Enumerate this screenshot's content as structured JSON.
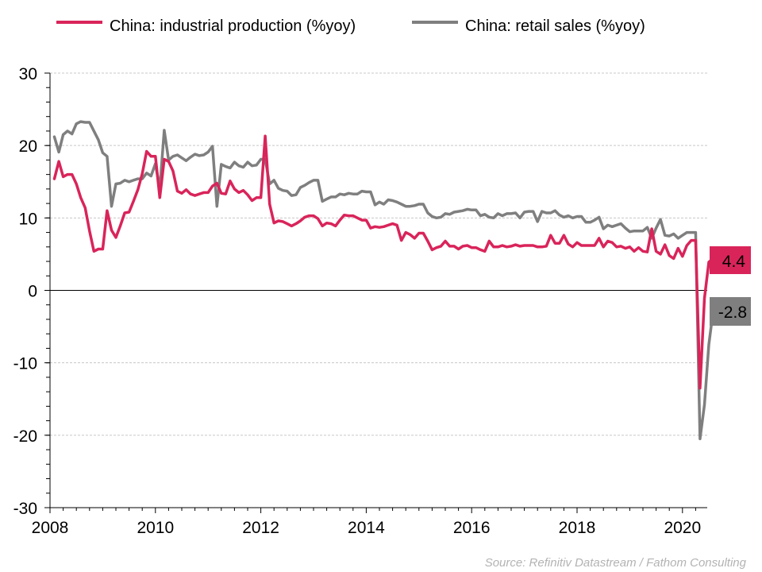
{
  "chart_data": {
    "type": "line",
    "title": "",
    "xlabel": "",
    "ylabel": "",
    "ylim": [
      -30,
      30
    ],
    "xlim": [
      2008.0,
      2020.45
    ],
    "y_ticks": [
      "30",
      "20",
      "10",
      "0",
      "-10",
      "-20",
      "-30"
    ],
    "y_tick_values": [
      30,
      20,
      10,
      0,
      -10,
      -20,
      -30
    ],
    "x_ticks": [
      "2008",
      "2010",
      "2012",
      "2014",
      "2016",
      "2018",
      "2020"
    ],
    "x_tick_values": [
      2008,
      2010,
      2012,
      2014,
      2016,
      2018,
      2020
    ],
    "grid": "horizontal dashed",
    "legend_position": "top",
    "start": "2008-02",
    "frequency": "monthly",
    "series": [
      {
        "name": "China: industrial production (%yoy)",
        "color": "#d9245a",
        "end_label": "4.4",
        "values": [
          15.4,
          17.8,
          15.7,
          16.0,
          16.0,
          14.7,
          12.8,
          11.4,
          8.2,
          5.4,
          5.7,
          5.7,
          11.0,
          8.3,
          7.3,
          8.9,
          10.7,
          10.8,
          12.3,
          13.9,
          16.1,
          19.2,
          18.5,
          18.5,
          12.8,
          18.1,
          17.8,
          16.5,
          13.7,
          13.4,
          13.9,
          13.3,
          13.1,
          13.3,
          13.5,
          13.5,
          14.4,
          14.8,
          13.4,
          13.3,
          15.1,
          14.0,
          13.5,
          13.8,
          13.2,
          12.4,
          12.8,
          12.8,
          21.3,
          11.9,
          9.3,
          9.6,
          9.5,
          9.2,
          8.9,
          9.2,
          9.6,
          10.1,
          10.3,
          10.3,
          9.9,
          8.9,
          9.3,
          9.2,
          8.9,
          9.7,
          10.4,
          10.3,
          10.3,
          10.0,
          9.7,
          9.7,
          8.6,
          8.8,
          8.7,
          8.8,
          9.0,
          9.2,
          9.0,
          6.9,
          8.0,
          7.7,
          7.2,
          7.9,
          7.9,
          6.8,
          5.6,
          5.9,
          6.1,
          6.8,
          6.1,
          6.1,
          5.7,
          6.1,
          6.2,
          5.9,
          5.9,
          5.6,
          5.4,
          6.8,
          6.0,
          6.0,
          6.2,
          6.0,
          6.1,
          6.3,
          6.1,
          6.2,
          6.2,
          6.2,
          6.0,
          6.0,
          6.1,
          7.6,
          6.5,
          6.5,
          7.6,
          6.4,
          6.0,
          6.6,
          6.2,
          6.2,
          6.2,
          6.2,
          7.2,
          6.0,
          6.8,
          6.6,
          6.0,
          6.1,
          5.8,
          6.0,
          5.4,
          5.9,
          5.4,
          5.3,
          8.5,
          5.4,
          5.0,
          6.3,
          4.8,
          4.4,
          5.8,
          4.7,
          6.2,
          6.9,
          6.9,
          -13.5,
          -1.1,
          3.9,
          4.4
        ]
      },
      {
        "name": "China: retail sales (%yoy)",
        "color": "#7f7f7f",
        "end_label": "-2.8",
        "values": [
          21.2,
          19.1,
          21.5,
          22.0,
          21.6,
          23.0,
          23.3,
          23.2,
          23.2,
          22.0,
          20.8,
          19.0,
          18.5,
          11.6,
          14.7,
          14.8,
          15.2,
          15.0,
          15.2,
          15.4,
          15.4,
          16.2,
          15.8,
          17.5,
          14.0,
          22.1,
          18.0,
          18.5,
          18.7,
          18.3,
          17.9,
          18.4,
          18.8,
          18.6,
          18.7,
          19.1,
          19.9,
          11.6,
          17.4,
          17.1,
          16.9,
          17.7,
          17.2,
          17.0,
          17.7,
          17.2,
          17.3,
          18.1,
          18.1,
          14.7,
          15.2,
          14.1,
          13.8,
          13.7,
          13.1,
          13.2,
          14.2,
          14.5,
          14.9,
          15.2,
          15.2,
          12.3,
          12.6,
          12.9,
          12.9,
          13.3,
          13.2,
          13.4,
          13.3,
          13.3,
          13.7,
          13.6,
          13.6,
          11.8,
          12.2,
          11.9,
          12.5,
          12.4,
          12.2,
          11.9,
          11.6,
          11.6,
          11.7,
          11.9,
          11.9,
          10.7,
          10.2,
          10.0,
          10.1,
          10.6,
          10.5,
          10.8,
          10.9,
          11.0,
          11.2,
          11.1,
          11.1,
          10.3,
          10.5,
          10.1,
          10.0,
          10.6,
          10.3,
          10.6,
          10.6,
          10.7,
          10.0,
          10.8,
          10.9,
          10.9,
          9.5,
          10.9,
          10.7,
          10.7,
          11.0,
          10.4,
          10.1,
          10.3,
          10.0,
          10.2,
          10.2,
          9.4,
          9.4,
          9.7,
          10.1,
          8.5,
          9.0,
          8.8,
          9.0,
          9.2,
          8.6,
          8.1,
          8.2,
          8.2,
          8.2,
          8.7,
          7.2,
          8.6,
          9.8,
          7.6,
          7.5,
          7.8,
          7.2,
          7.6,
          8.0,
          8.0,
          8.0,
          -20.5,
          -15.8,
          -7.5,
          -2.8
        ]
      }
    ]
  },
  "legend": {
    "items": [
      {
        "label": "China: industrial production (%yoy)",
        "color": "#d9245a"
      },
      {
        "label": "China: retail sales (%yoy)",
        "color": "#7f7f7f"
      }
    ]
  },
  "end_labels": {
    "ip": "4.4",
    "retail": "-2.8"
  },
  "source": "Source: Refinitiv Datastream / Fathom Consulting"
}
